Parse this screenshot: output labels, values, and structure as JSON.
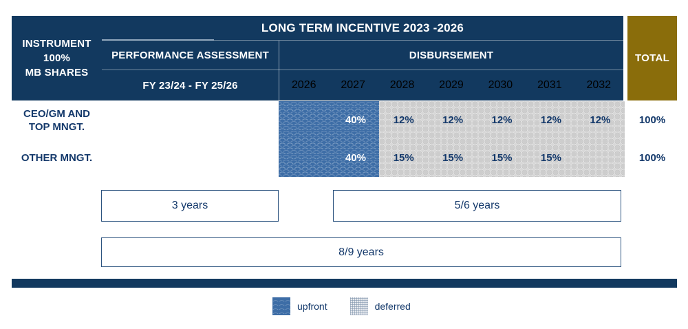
{
  "title": "LONG TERM INCENTIVE 2023 -2026",
  "header": {
    "instrument": "INSTRUMENT\n100%\nMB SHARES",
    "performance_assessment": "PERFORMANCE ASSESSMENT",
    "performance_period": "FY 23/24 - FY 25/26",
    "disbursement": "DISBURSEMENT",
    "years": [
      "2026",
      "2027",
      "2028",
      "2029",
      "2030",
      "2031",
      "2032"
    ],
    "total_label": "TOTAL"
  },
  "rows": [
    {
      "label": "CEO/GM AND\nTOP MNGT.",
      "upfront": "40%",
      "deferred": [
        "12%",
        "12%",
        "12%",
        "12%",
        "12%"
      ],
      "total": "100%"
    },
    {
      "label": "OTHER MNGT.",
      "upfront": "40%",
      "deferred": [
        "15%",
        "15%",
        "15%",
        "15%",
        ""
      ],
      "total": "100%"
    }
  ],
  "durations": {
    "performance": "3 years",
    "deferral": "5/6 years",
    "overall": "8/9 years"
  },
  "legend": {
    "upfront": "upfront",
    "deferred": "deferred"
  },
  "colors": {
    "navy": "#12395F",
    "gold": "#8A6D0B",
    "upfront_blue": "#3D6DA6",
    "deferred_gray": "#D7D7D7",
    "text_navy": "#14396B"
  }
}
